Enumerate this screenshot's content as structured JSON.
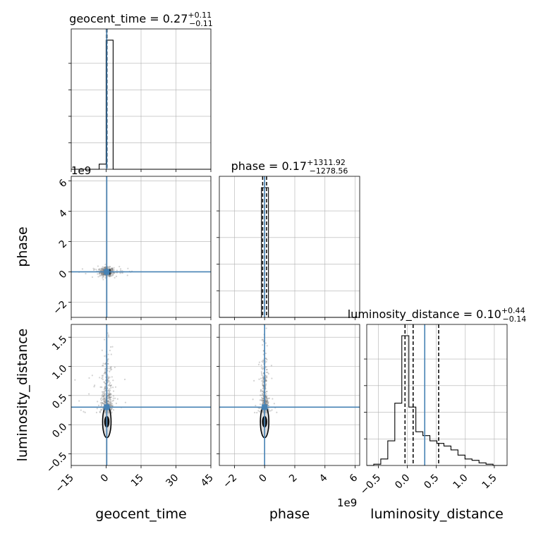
{
  "chart_data": {
    "type": "corner",
    "parameters": [
      "geocent_time",
      "phase",
      "luminosity_distance"
    ],
    "colors": {
      "truth": "#4682b4",
      "hist": "#000000",
      "grid": "#b0b0b0",
      "samples": "#7f7f7f"
    },
    "titles": {
      "geocent_time": {
        "prefix": "geocent_time = 0.27",
        "plus": "+0.11",
        "minus": "−0.11"
      },
      "phase": {
        "prefix": "phase = 0.17",
        "plus": "+1311.92",
        "minus": "−1278.56"
      },
      "luminosity_distance": {
        "prefix": "luminosity_distance = 0.10",
        "plus": "+0.44",
        "minus": "−0.14"
      }
    },
    "axes": {
      "geocent_time": {
        "range": [
          -15,
          45
        ],
        "ticks": [
          -15,
          0,
          15,
          30,
          45
        ],
        "tick_labels": [
          "−15",
          "0",
          "15",
          "30",
          "45"
        ],
        "label": "geocent_time"
      },
      "phase": {
        "range": [
          -3,
          6.3
        ],
        "ticks": [
          -2,
          0,
          2,
          4,
          6
        ],
        "tick_labels": [
          "−2",
          "0",
          "2",
          "4",
          "6"
        ],
        "label": "phase",
        "offset_text": "1e9"
      },
      "luminosity_distance": {
        "range": [
          -0.7,
          1.72
        ],
        "ticks": [
          -0.5,
          0.0,
          0.5,
          1.0,
          1.5
        ],
        "tick_labels": [
          "−0.5",
          "0.0",
          "0.5",
          "1.0",
          "1.5"
        ],
        "label": "luminosity_distance"
      }
    },
    "truths": {
      "geocent_time": 0.27,
      "phase": 0.0,
      "luminosity_distance": 0.3
    },
    "histograms": {
      "geocent_time": {
        "edges": [
          -15,
          -12,
          -9,
          -6,
          -3,
          0,
          3,
          6,
          9,
          12,
          15,
          18,
          21,
          24,
          27,
          30,
          33,
          36,
          39,
          42,
          45
        ],
        "counts": [
          0,
          0,
          0,
          0,
          0.04,
          1.0,
          0,
          0,
          0,
          0,
          0,
          0,
          0,
          0,
          0,
          0,
          0,
          0,
          0,
          0
        ],
        "quantiles": [
          0.16,
          0.27,
          0.38
        ]
      },
      "phase": {
        "edges": [
          -3.0,
          -2.535,
          -2.07,
          -1.605,
          -1.14,
          -0.675,
          -0.21,
          0.255,
          0.72,
          1.185,
          1.65,
          2.115,
          2.58,
          3.045,
          3.51,
          3.975,
          4.44,
          4.905,
          5.37,
          5.835,
          6.3
        ],
        "counts": [
          0,
          0,
          0,
          0,
          0,
          0,
          1.0,
          0,
          0,
          0,
          0,
          0,
          0,
          0,
          0,
          0,
          0,
          0,
          0,
          0
        ],
        "quantiles": [
          -0.13,
          0.0,
          0.13
        ]
      },
      "luminosity_distance": {
        "edges": [
          -0.7,
          -0.579,
          -0.458,
          -0.337,
          -0.216,
          -0.095,
          0.026,
          0.147,
          0.268,
          0.389,
          0.51,
          0.631,
          0.752,
          0.873,
          0.994,
          1.115,
          1.236,
          1.357,
          1.478,
          1.599,
          1.72
        ],
        "counts": [
          0,
          0.01,
          0.05,
          0.19,
          0.48,
          1.0,
          0.45,
          0.26,
          0.23,
          0.19,
          0.17,
          0.15,
          0.12,
          0.08,
          0.05,
          0.04,
          0.02,
          0.01,
          0,
          0
        ],
        "quantiles": [
          -0.04,
          0.1,
          0.54
        ]
      }
    },
    "scatter": {
      "geocent_time_vs_phase": {
        "center": [
          0.3,
          0.0
        ],
        "spread": [
          1.5,
          0.15
        ]
      },
      "geocent_time_vs_luminosity_distance": {
        "center": [
          0.3,
          0.2
        ],
        "spread": [
          1.2,
          0.35
        ],
        "contour": {
          "inner": {
            "width": 1.2,
            "height": 0.18
          },
          "outer": {
            "width": 3.2,
            "height": 0.55
          }
        }
      },
      "phase_vs_luminosity_distance": {
        "center": [
          0.0,
          0.2
        ],
        "spread": [
          0.1,
          0.35
        ],
        "contour": {
          "inner": {
            "width": 0.12,
            "height": 0.18
          },
          "outer": {
            "width": 0.3,
            "height": 0.55
          }
        }
      }
    }
  }
}
